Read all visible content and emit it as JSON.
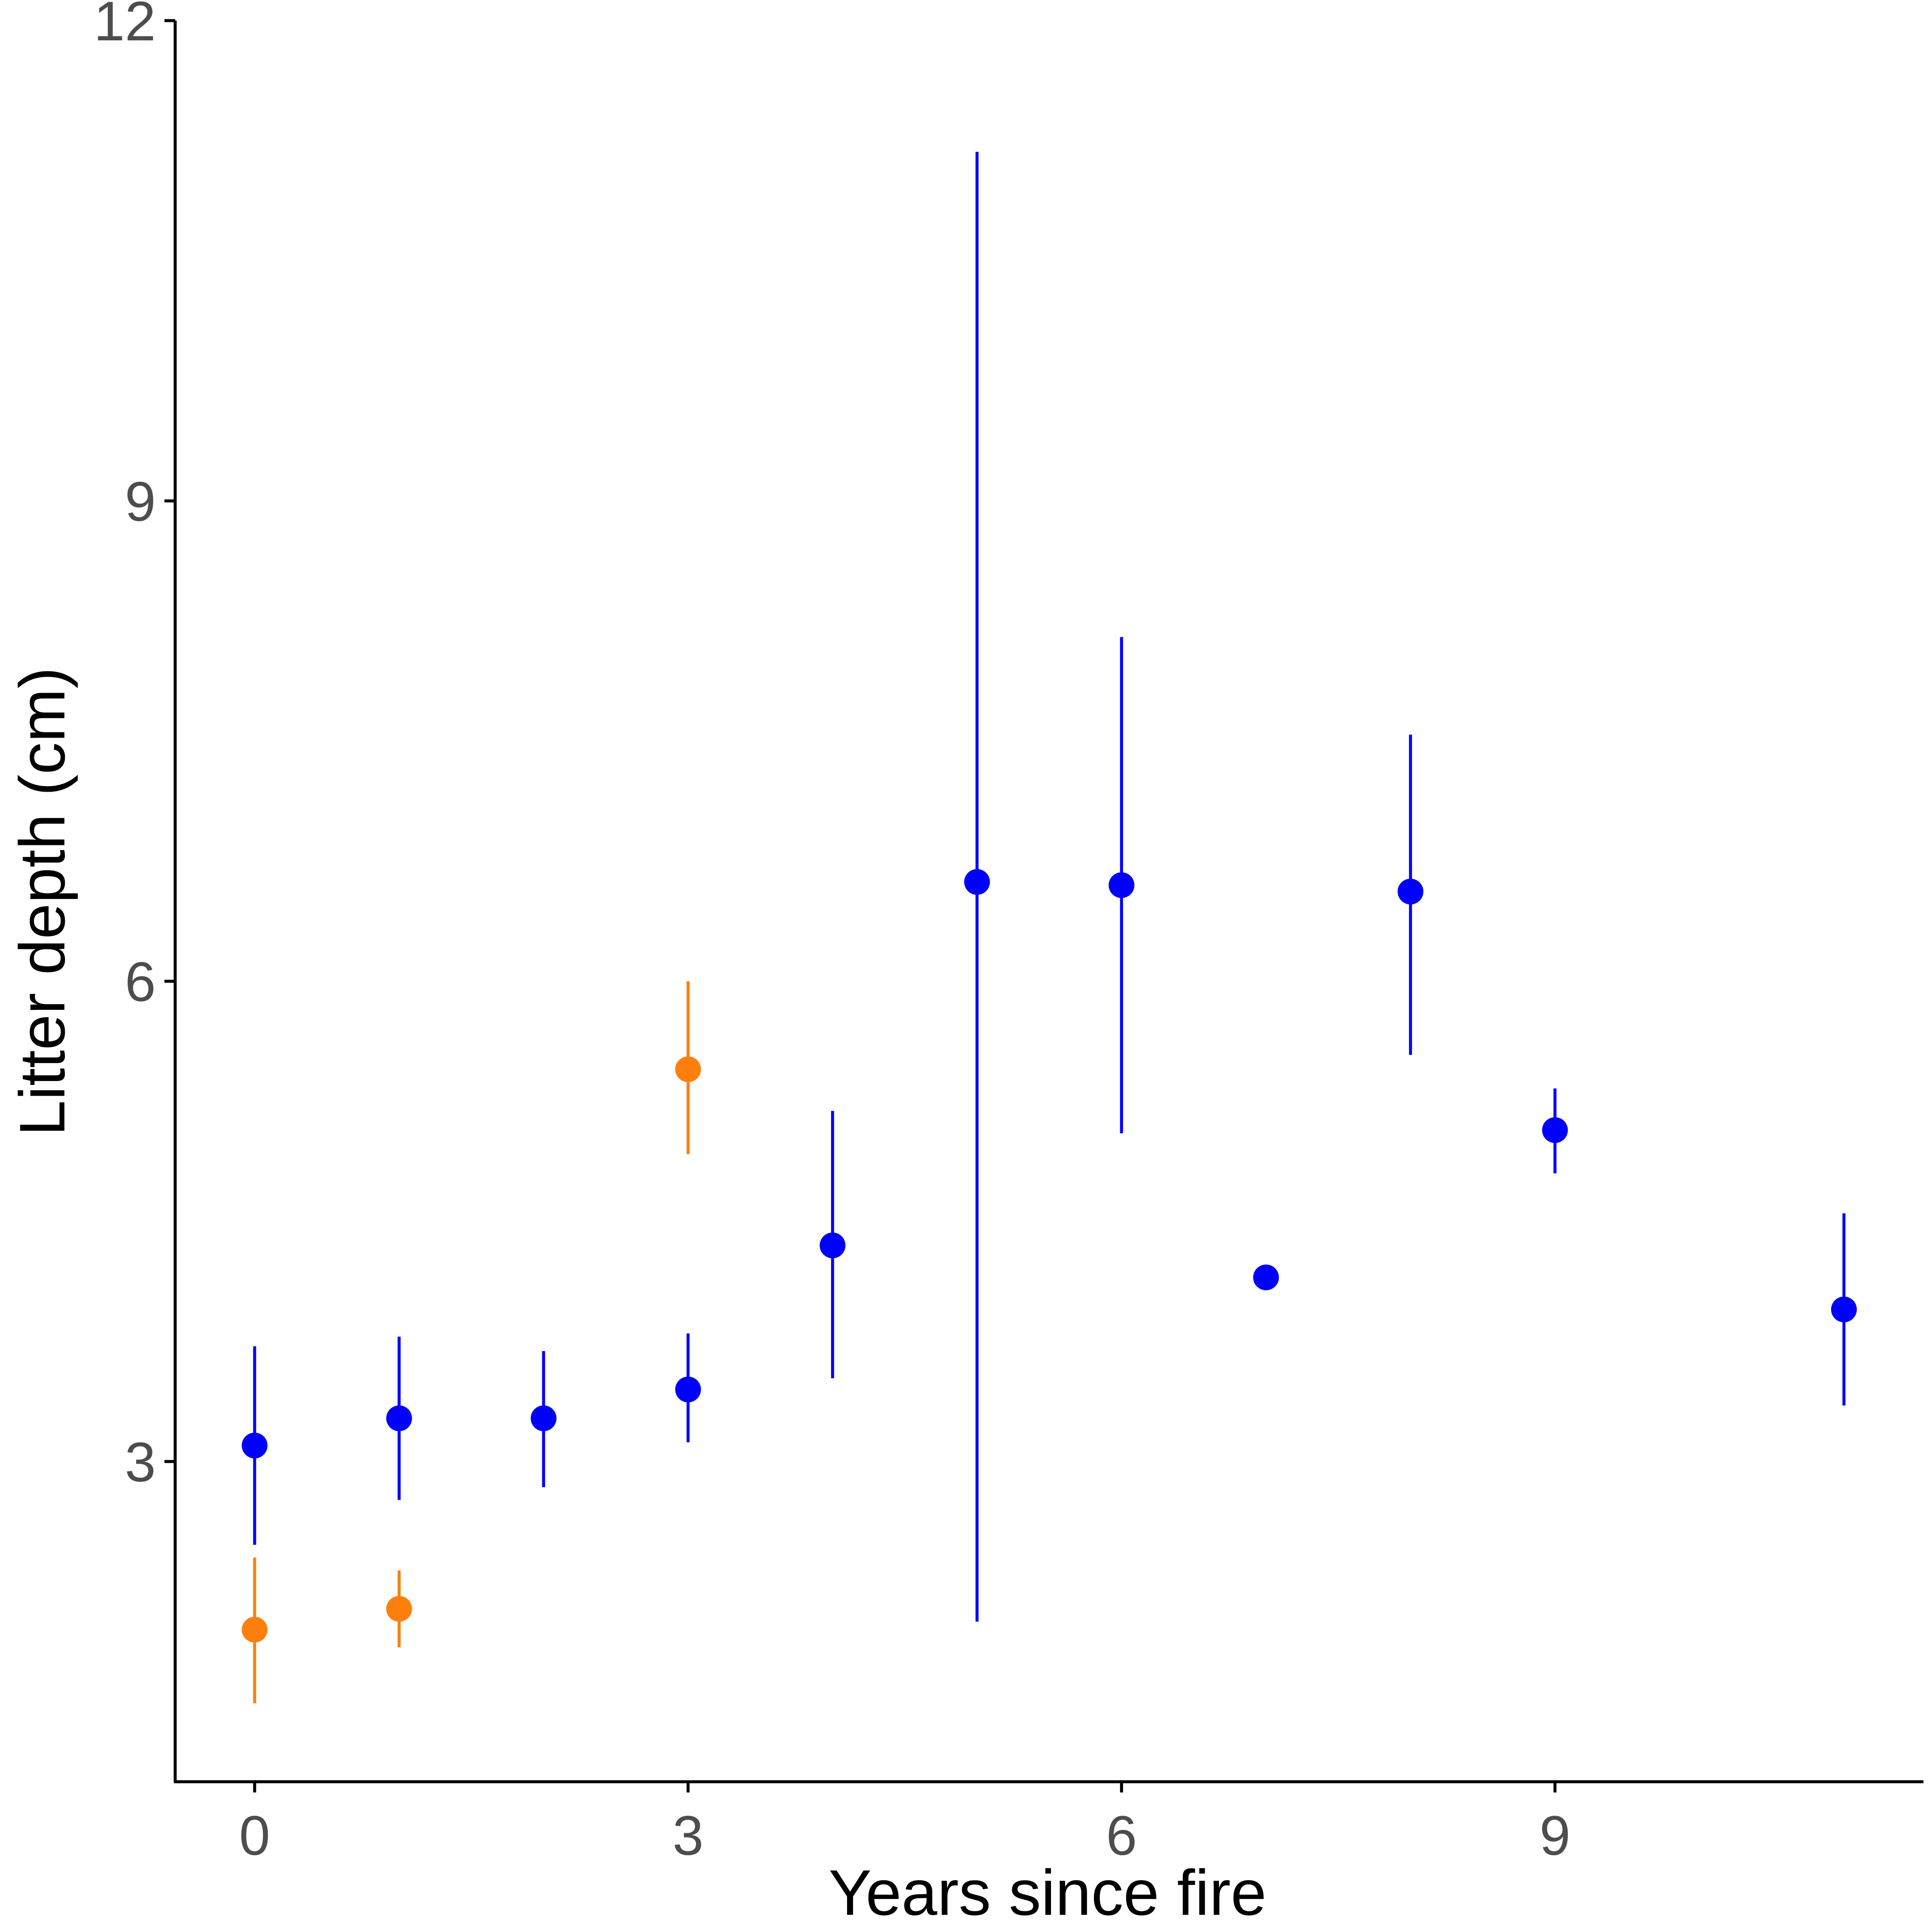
{
  "chart_data": {
    "type": "scatter",
    "title": "",
    "xlabel": "Years since fire",
    "ylabel": "Litter depth (cm)",
    "xlim": [
      -0.55,
      11.55
    ],
    "ylim": [
      1.0,
      12.0
    ],
    "x_ticks": [
      0,
      3,
      6,
      9
    ],
    "y_ticks": [
      3,
      6,
      9,
      12
    ],
    "x_tick_labels": [
      "0",
      "3",
      "6",
      "9"
    ],
    "y_tick_labels": [
      "3",
      "6",
      "9",
      "12"
    ],
    "grid": false,
    "legend": "none",
    "series": [
      {
        "color": "#0000ff",
        "points": [
          {
            "x": 0,
            "y": 3.1,
            "lower": 2.48,
            "upper": 3.72
          },
          {
            "x": 1,
            "y": 3.27,
            "lower": 2.76,
            "upper": 3.78
          },
          {
            "x": 2,
            "y": 3.27,
            "lower": 2.84,
            "upper": 3.69
          },
          {
            "x": 3,
            "y": 3.45,
            "lower": 3.12,
            "upper": 3.8
          },
          {
            "x": 4,
            "y": 4.35,
            "lower": 3.52,
            "upper": 5.19
          },
          {
            "x": 5,
            "y": 6.62,
            "lower": 2.0,
            "upper": 11.18
          },
          {
            "x": 6,
            "y": 6.6,
            "lower": 5.05,
            "upper": 8.15
          },
          {
            "x": 7,
            "y": 4.15,
            "lower": 4.15,
            "upper": 4.15
          },
          {
            "x": 8,
            "y": 6.56,
            "lower": 5.54,
            "upper": 7.54
          },
          {
            "x": 9,
            "y": 5.07,
            "lower": 4.8,
            "upper": 5.33
          },
          {
            "x": 11,
            "y": 3.95,
            "lower": 3.35,
            "upper": 4.55
          }
        ]
      },
      {
        "color": "#ff7f0e",
        "points": [
          {
            "x": 0,
            "y": 1.95,
            "lower": 1.49,
            "upper": 2.4
          },
          {
            "x": 1,
            "y": 2.08,
            "lower": 1.84,
            "upper": 2.32
          },
          {
            "x": 3,
            "y": 5.45,
            "lower": 4.92,
            "upper": 6.0
          }
        ]
      }
    ]
  }
}
